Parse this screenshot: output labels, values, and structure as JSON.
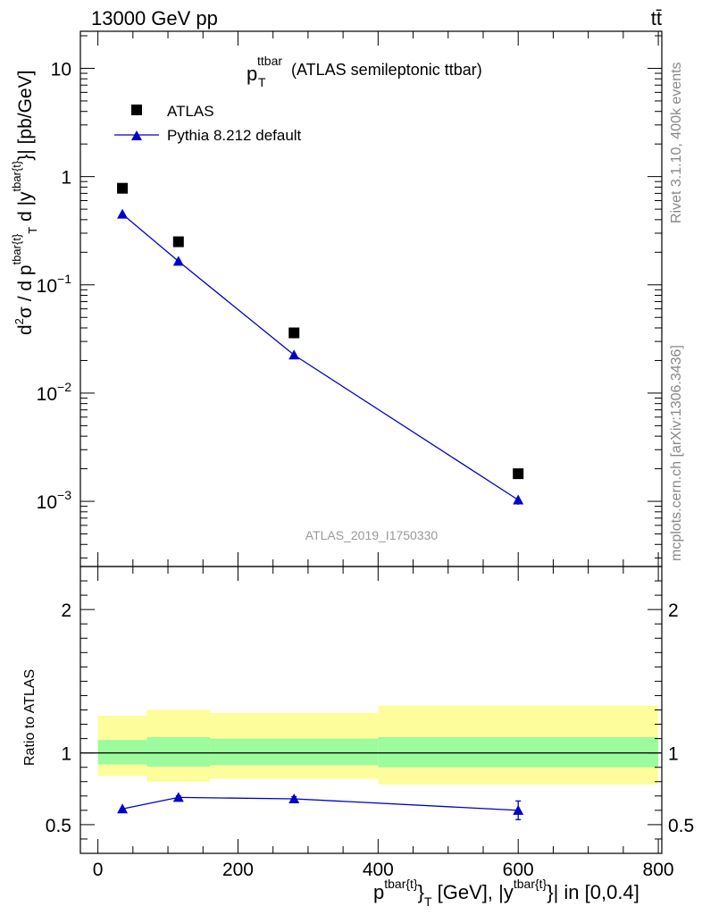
{
  "chart_data": [
    {
      "type": "scatter",
      "panel": "main",
      "title": "p_T^ttbar (ATLAS semileptonic ttbar)",
      "title_main": "p",
      "title_sub": "T",
      "title_sup": "ttbar",
      "title_rest": "(ATLAS semileptonic ttbar)",
      "header_left": "13000 GeV pp",
      "header_right": "tt̄",
      "analysis_label": "ATLAS_2019_I1750330",
      "side_label_top": "Rivet 3.1.10,  400k events",
      "side_label_bottom": "mcplots.cern.ch [arXiv:1306.3436]",
      "ylabel": "d²σ / d p^{tbar{t}}_T d |y^{tbar{t}}| [pb/GeV]",
      "yscale": "log",
      "xlim": [
        -25,
        805
      ],
      "ylim": [
        0.00025,
        22
      ],
      "y_ticks": [
        {
          "value": 10,
          "label": "10"
        },
        {
          "value": 1,
          "label": "1"
        },
        {
          "value": 0.1,
          "label": "10",
          "exp": "−1"
        },
        {
          "value": 0.01,
          "label": "10",
          "exp": "−2"
        },
        {
          "value": 0.001,
          "label": "10",
          "exp": "−3"
        }
      ],
      "legend": [
        {
          "name": "ATLAS",
          "marker": "square",
          "color": "#000000"
        },
        {
          "name": "Pythia 8.212 default",
          "marker": "triangle",
          "color": "#0000cc"
        }
      ],
      "series": [
        {
          "name": "ATLAS",
          "x": [
            35,
            115,
            280,
            600
          ],
          "y": [
            0.78,
            0.25,
            0.036,
            0.0018
          ],
          "marker": "square",
          "color": "#000000"
        },
        {
          "name": "Pythia 8.212 default",
          "x": [
            35,
            115,
            280,
            600
          ],
          "y": [
            0.45,
            0.165,
            0.0225,
            0.00103
          ],
          "yerr_low": [
            0,
            0,
            0,
            0.0001
          ],
          "yerr_high": [
            0,
            0,
            0,
            0.0001
          ],
          "marker": "triangle",
          "color": "#0000cc",
          "line": true
        }
      ]
    },
    {
      "type": "line",
      "panel": "ratio",
      "ylabel": "Ratio to ATLAS",
      "xlabel": "p^{tbar{t}}_T [GeV], |y^{tbar{t}}| in [0,0.4]",
      "xlim": [
        -25,
        805
      ],
      "ylim": [
        0.3,
        2.3
      ],
      "x_ticks": [
        0,
        200,
        400,
        600,
        800
      ],
      "y_ticks": [
        0.5,
        1,
        2
      ],
      "reference_line": 1,
      "bands": [
        {
          "x_from": 0,
          "x_to": 70,
          "inner": [
            0.92,
            1.09
          ],
          "outer": [
            0.84,
            1.26
          ]
        },
        {
          "x_from": 70,
          "x_to": 160,
          "inner": [
            0.905,
            1.11
          ],
          "outer": [
            0.8,
            1.3
          ]
        },
        {
          "x_from": 160,
          "x_to": 400,
          "inner": [
            0.915,
            1.1
          ],
          "outer": [
            0.82,
            1.28
          ]
        },
        {
          "x_from": 400,
          "x_to": 800,
          "inner": [
            0.9,
            1.11
          ],
          "outer": [
            0.78,
            1.33
          ]
        }
      ],
      "band_colors": {
        "inner": "#9cfb9c",
        "outer": "#fdfd9c"
      },
      "series": [
        {
          "name": "Pythia 8.212 default",
          "x": [
            35,
            115,
            280,
            600
          ],
          "y": [
            0.61,
            0.69,
            0.68,
            0.6
          ],
          "yerr_low": [
            0.005,
            0.01,
            0.015,
            0.065
          ],
          "yerr_high": [
            0.005,
            0.01,
            0.015,
            0.065
          ],
          "marker": "triangle",
          "color": "#0000cc"
        }
      ]
    }
  ]
}
